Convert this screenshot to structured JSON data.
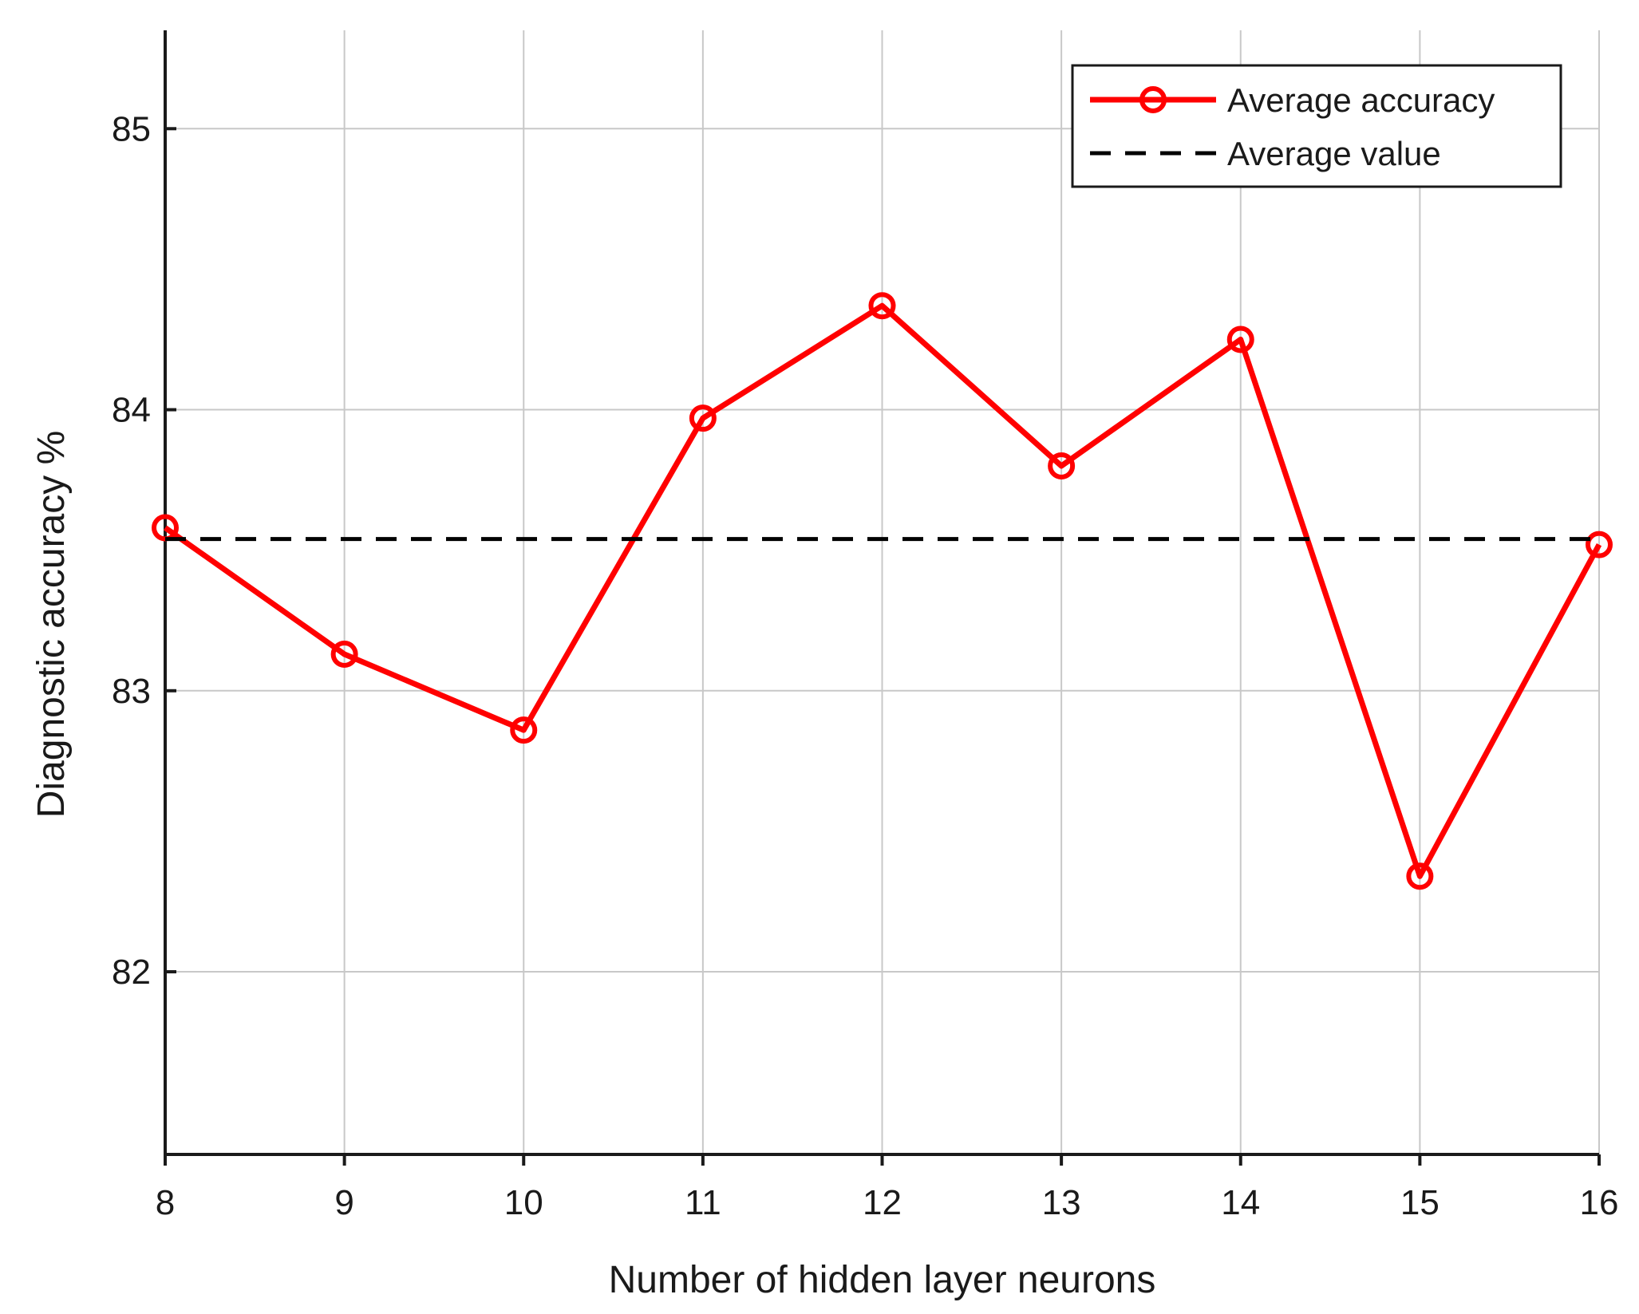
{
  "chart_data": {
    "type": "line",
    "xlabel": "Number of hidden layer neurons",
    "ylabel": "Diagnostic accuracy %",
    "xlim": [
      8,
      16
    ],
    "ylim": [
      81.35,
      85.35
    ],
    "xticks": [
      8,
      9,
      10,
      11,
      12,
      13,
      14,
      15,
      16
    ],
    "yticks": [
      82,
      83,
      84,
      85
    ],
    "grid": true,
    "legend_position": "top-right",
    "series": [
      {
        "name": "Average accuracy",
        "color": "#ff0000",
        "line_style": "solid",
        "marker": "circle",
        "x": [
          8,
          9,
          10,
          11,
          12,
          13,
          14,
          15,
          16
        ],
        "y": [
          83.58,
          83.13,
          82.86,
          83.97,
          84.37,
          83.8,
          84.25,
          82.34,
          83.52
        ]
      },
      {
        "name": "Average value",
        "color": "#000000",
        "line_style": "dashed",
        "marker": "none",
        "x": [
          8,
          16
        ],
        "y": [
          83.54,
          83.54
        ]
      }
    ]
  }
}
